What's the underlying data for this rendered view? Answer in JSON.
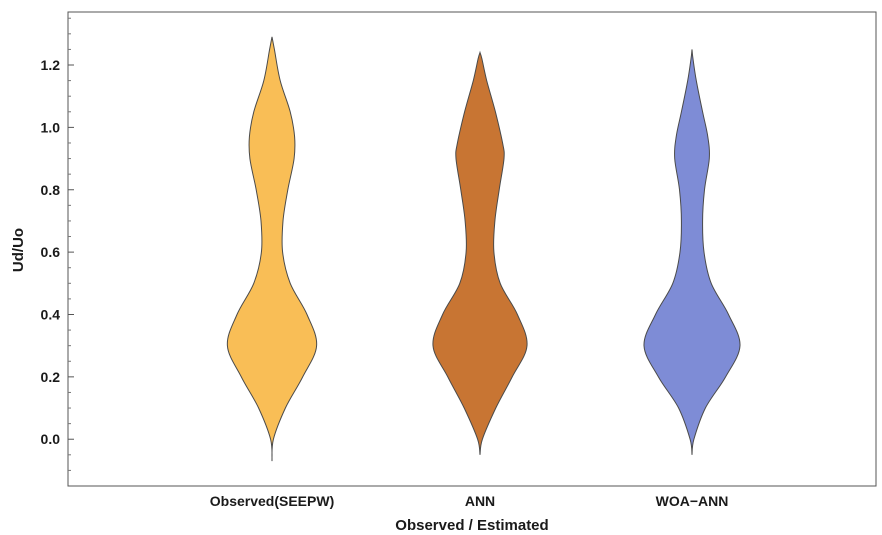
{
  "chart_data": {
    "type": "violin",
    "title": "",
    "xlabel": "Observed / Estimated",
    "ylabel": "Ud/Uo",
    "ylim": [
      -0.15,
      1.37
    ],
    "yticks": [
      0.0,
      0.2,
      0.4,
      0.6,
      0.8,
      1.0,
      1.2
    ],
    "ytick_labels": [
      "0.0",
      "0.2",
      "0.4",
      "0.6",
      "0.8",
      "1.0",
      "1.2"
    ],
    "grid": false,
    "categories": [
      "Observed(SEEPW)",
      "ANN",
      "WOA−ANN"
    ],
    "series": [
      {
        "name": "Observed(SEEPW)",
        "color": "#F9BE56",
        "min": -0.07,
        "max": 1.29,
        "profile": [
          [
            -0.07,
            0.0
          ],
          [
            0.0,
            0.03
          ],
          [
            0.1,
            0.28
          ],
          [
            0.2,
            0.64
          ],
          [
            0.3,
            0.93
          ],
          [
            0.4,
            0.73
          ],
          [
            0.5,
            0.38
          ],
          [
            0.6,
            0.22
          ],
          [
            0.7,
            0.23
          ],
          [
            0.8,
            0.33
          ],
          [
            0.9,
            0.46
          ],
          [
            0.97,
            0.47
          ],
          [
            1.05,
            0.38
          ],
          [
            1.15,
            0.17
          ],
          [
            1.25,
            0.05
          ],
          [
            1.29,
            0.0
          ]
        ]
      },
      {
        "name": "ANN",
        "color": "#C87533",
        "min": -0.05,
        "max": 1.24,
        "profile": [
          [
            -0.05,
            0.0
          ],
          [
            0.0,
            0.05
          ],
          [
            0.1,
            0.33
          ],
          [
            0.2,
            0.67
          ],
          [
            0.3,
            0.98
          ],
          [
            0.4,
            0.78
          ],
          [
            0.5,
            0.42
          ],
          [
            0.6,
            0.29
          ],
          [
            0.7,
            0.31
          ],
          [
            0.8,
            0.4
          ],
          [
            0.9,
            0.5
          ],
          [
            0.95,
            0.47
          ],
          [
            1.05,
            0.32
          ],
          [
            1.15,
            0.14
          ],
          [
            1.22,
            0.04
          ],
          [
            1.24,
            0.0
          ]
        ]
      },
      {
        "name": "WOA−ANN",
        "color": "#7E8CD6",
        "min": -0.05,
        "max": 1.25,
        "profile": [
          [
            -0.05,
            0.0
          ],
          [
            0.0,
            0.04
          ],
          [
            0.1,
            0.28
          ],
          [
            0.2,
            0.7
          ],
          [
            0.3,
            1.0
          ],
          [
            0.4,
            0.76
          ],
          [
            0.5,
            0.4
          ],
          [
            0.6,
            0.25
          ],
          [
            0.7,
            0.22
          ],
          [
            0.8,
            0.26
          ],
          [
            0.9,
            0.36
          ],
          [
            0.97,
            0.33
          ],
          [
            1.05,
            0.22
          ],
          [
            1.15,
            0.09
          ],
          [
            1.22,
            0.02
          ],
          [
            1.25,
            0.0
          ]
        ]
      }
    ]
  }
}
